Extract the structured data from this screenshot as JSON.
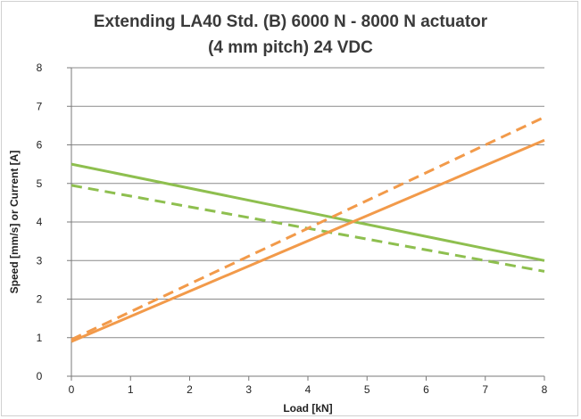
{
  "chart_data": {
    "type": "line",
    "title_line1": "Extending LA40 Std. (B) 6000 N - 8000 N actuator",
    "title_line2": "(4 mm pitch) 24 VDC",
    "xlabel": "Load [kN]",
    "ylabel": "Speed [mm/s] or Current [A]",
    "xlim": [
      0,
      8
    ],
    "ylim": [
      0,
      8
    ],
    "xticks": [
      "0",
      "1",
      "2",
      "3",
      "4",
      "5",
      "6",
      "7",
      "8"
    ],
    "yticks": [
      "0",
      "1",
      "2",
      "3",
      "4",
      "5",
      "6",
      "7",
      "8"
    ],
    "grid": true,
    "series": [
      {
        "color": "#8ebf4f",
        "dashed": false,
        "x": [
          0,
          8
        ],
        "y": [
          5.5,
          3.0
        ]
      },
      {
        "color": "#8ebf4f",
        "dashed": true,
        "x": [
          0,
          8
        ],
        "y": [
          4.95,
          2.72
        ]
      },
      {
        "color": "#f29a4a",
        "dashed": false,
        "x": [
          0,
          8
        ],
        "y": [
          0.9,
          6.12
        ]
      },
      {
        "color": "#f29a4a",
        "dashed": true,
        "x": [
          0,
          8
        ],
        "y": [
          0.95,
          6.72
        ]
      }
    ]
  }
}
